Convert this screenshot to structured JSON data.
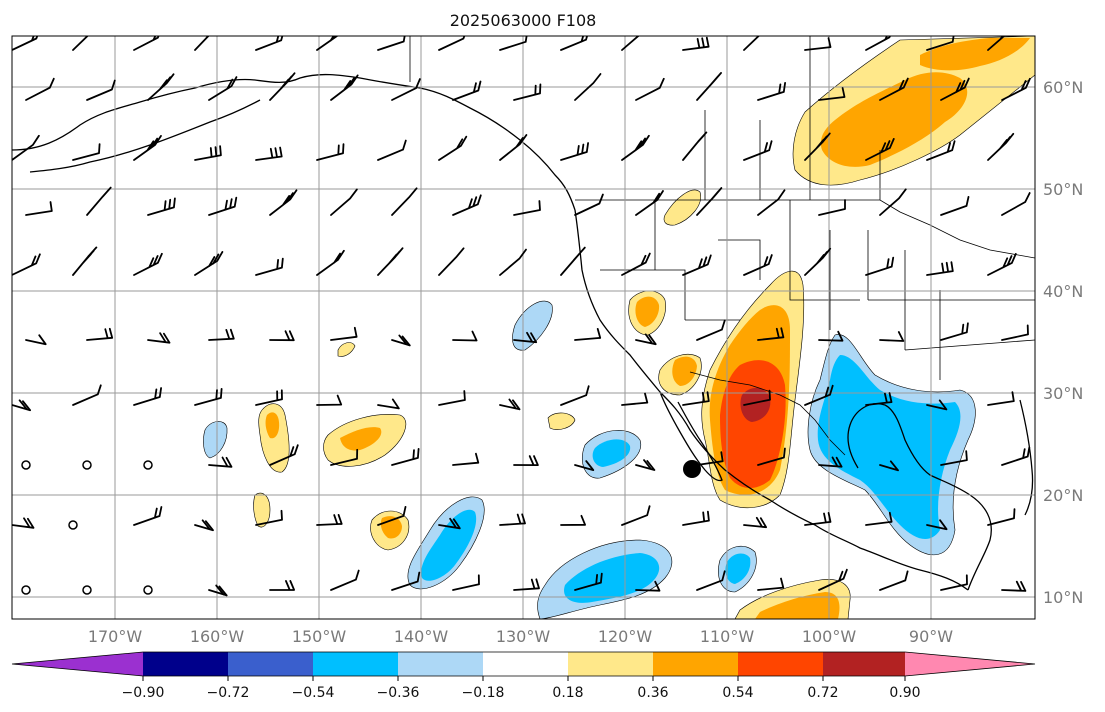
{
  "title": "2025063000 F108",
  "lat_labels": [
    "60°N",
    "50°N",
    "40°N",
    "30°N",
    "20°N",
    "10°N"
  ],
  "lon_labels": [
    "170°W",
    "160°W",
    "150°W",
    "140°W",
    "130°W",
    "120°W",
    "110°W",
    "100°W",
    "90°W"
  ],
  "colorbar": {
    "tick_labels": [
      "−0.90",
      "−0.72",
      "−0.54",
      "−0.36",
      "−0.18",
      "0.18",
      "0.36",
      "0.54",
      "0.72",
      "0.90"
    ],
    "colors": [
      "#9b30d0",
      "#00008b",
      "#3a5fcd",
      "#00bfff",
      "#add8f6",
      "#ffffff",
      "#ffe88a",
      "#ffa500",
      "#ff4500",
      "#b22222",
      "#ff88b0"
    ]
  }
}
